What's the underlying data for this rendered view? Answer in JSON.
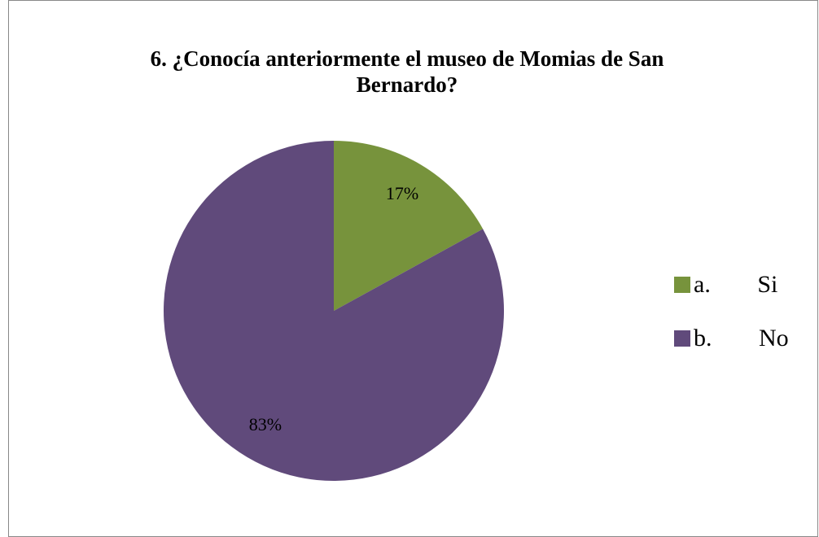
{
  "chart_data": {
    "type": "pie",
    "title": "6. ¿Conocía anteriormente el museo de Momias de San Bernardo?",
    "categories": [
      "a. Si",
      "b. No"
    ],
    "values": [
      17,
      83
    ],
    "value_labels": [
      "17%",
      "83%"
    ],
    "colors": [
      "#77933c",
      "#604a7b"
    ],
    "legend": "right"
  }
}
